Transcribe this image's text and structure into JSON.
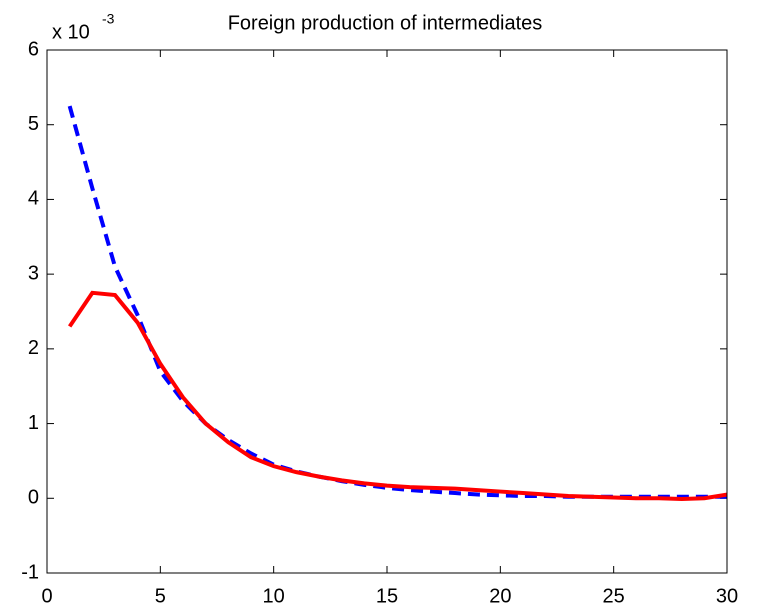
{
  "chart_data": {
    "type": "line",
    "title": "Foreign production of intermediates",
    "y_multiplier": {
      "base": "x 10",
      "exponent": "-3"
    },
    "x": [
      1,
      2,
      3,
      4,
      5,
      6,
      7,
      8,
      9,
      10,
      11,
      12,
      13,
      14,
      15,
      16,
      17,
      18,
      19,
      20,
      21,
      22,
      23,
      24,
      25,
      26,
      27,
      28,
      29,
      30
    ],
    "series": [
      {
        "color": "#0000ff",
        "dash": true,
        "values": [
          5.25,
          4.15,
          3.1,
          2.45,
          1.7,
          1.3,
          1.0,
          0.78,
          0.6,
          0.45,
          0.36,
          0.29,
          0.23,
          0.18,
          0.14,
          0.11,
          0.09,
          0.07,
          0.05,
          0.04,
          0.03,
          0.03,
          0.02,
          0.02,
          0.02,
          0.02,
          0.02,
          0.02,
          0.02,
          0.02
        ]
      },
      {
        "color": "#ff0000",
        "dash": false,
        "values": [
          2.3,
          2.75,
          2.72,
          2.35,
          1.8,
          1.35,
          1.0,
          0.75,
          0.55,
          0.43,
          0.35,
          0.29,
          0.24,
          0.2,
          0.17,
          0.15,
          0.14,
          0.13,
          0.11,
          0.09,
          0.07,
          0.05,
          0.03,
          0.02,
          0.01,
          0.0,
          0.0,
          -0.01,
          0.0,
          0.05
        ]
      }
    ],
    "xlim": [
      0,
      30
    ],
    "xticks": [
      0,
      5,
      10,
      15,
      20,
      25,
      30
    ],
    "ylim": [
      -1,
      6
    ],
    "yticks": [
      -1,
      0,
      1,
      2,
      3,
      4,
      5,
      6
    ],
    "grid": false
  }
}
